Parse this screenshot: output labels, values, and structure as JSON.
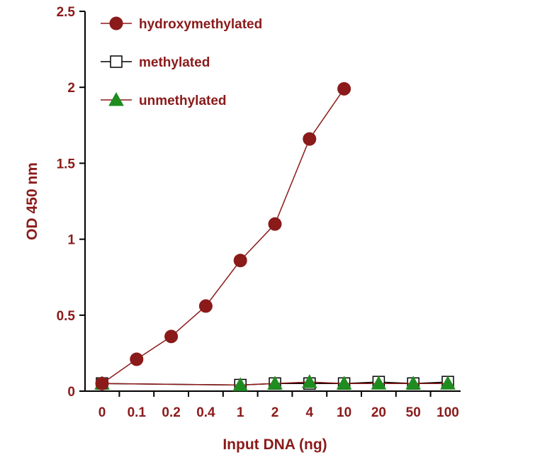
{
  "chart_data": {
    "type": "line",
    "title": "",
    "xlabel": "Input DNA  (ng)",
    "ylabel": "OD 450 nm",
    "categories": [
      "0",
      "0.1",
      "0.2",
      "0.4",
      "1",
      "2",
      "4",
      "10",
      "20",
      "50",
      "100"
    ],
    "ylim": [
      0,
      2.5
    ],
    "yticks": [
      "0",
      "0.5",
      "1",
      "1.5",
      "2",
      "2.5"
    ],
    "grid": false,
    "legend_position": "top-left",
    "series": [
      {
        "name": "hydroxymethylated",
        "marker": "circle",
        "color": "#8b1a1a",
        "line_color": "#8b1a1a",
        "values": [
          0.05,
          0.21,
          0.36,
          0.56,
          0.86,
          1.1,
          1.66,
          1.99,
          null,
          null,
          null
        ]
      },
      {
        "name": "methylated",
        "marker": "square",
        "color": "#ffffff",
        "line_color": "#000000",
        "values": [
          0.05,
          null,
          null,
          null,
          0.04,
          0.05,
          0.05,
          0.05,
          0.06,
          0.05,
          0.06
        ]
      },
      {
        "name": "unmethylated",
        "marker": "triangle",
        "color": "#1f8c1f",
        "line_color": "#8b1a1a",
        "values": [
          0.05,
          null,
          null,
          null,
          0.04,
          0.05,
          0.06,
          0.05,
          0.05,
          0.05,
          0.05
        ]
      }
    ],
    "colors": {
      "axis_text": "#8b1a1a",
      "axis_line": "#000000"
    }
  }
}
